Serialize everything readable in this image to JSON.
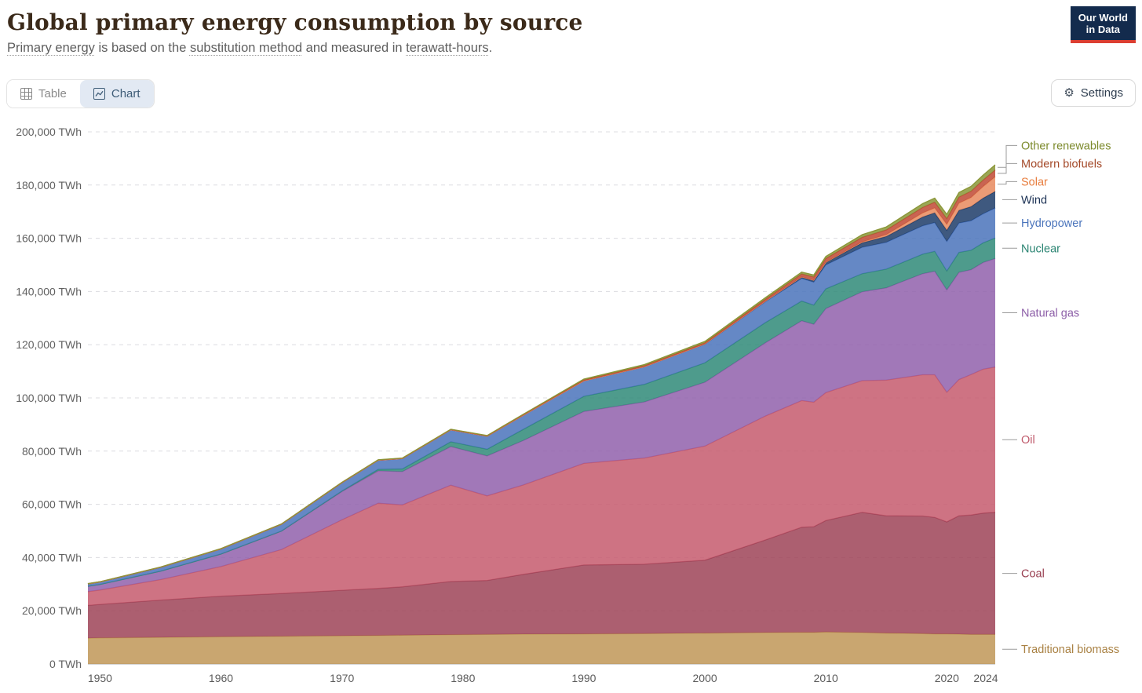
{
  "header": {
    "title": "Global primary energy consumption by source",
    "subtitle_parts": [
      {
        "text": "Primary energy",
        "underlined": true
      },
      {
        "text": " is based on the ",
        "underlined": false
      },
      {
        "text": "substitution method",
        "underlined": true
      },
      {
        "text": " and measured in ",
        "underlined": false
      },
      {
        "text": "terawatt-hours",
        "underlined": true
      },
      {
        "text": ".",
        "underlined": false
      }
    ],
    "logo": {
      "line1": "Our World",
      "line2": "in Data"
    }
  },
  "toolbar": {
    "table_tab": "Table",
    "chart_tab": "Chart",
    "active_tab": "Chart",
    "settings_label": "Settings"
  },
  "ui_colors": {
    "logo_bg": "#132b4d",
    "logo_red_bar": "#dc3e31",
    "active_tab_bg": "#e2e9f3",
    "active_tab_fg": "#3e5c77"
  },
  "chart_data": {
    "type": "area",
    "stacked": true,
    "title": "Global primary energy consumption by source",
    "unit": "TWh",
    "ylabel": "",
    "xlabel": "",
    "ylim": [
      0,
      200000
    ],
    "y_ticks": [
      0,
      20000,
      40000,
      60000,
      80000,
      100000,
      120000,
      140000,
      160000,
      180000,
      200000
    ],
    "x_ticks": [
      1950,
      1960,
      1970,
      1980,
      1990,
      2000,
      2010,
      2020,
      2024
    ],
    "grid": "dashed",
    "legend_position": "right",
    "series_order": "bottom-to-top",
    "x": [
      1949,
      1950,
      1955,
      1960,
      1965,
      1970,
      1973,
      1975,
      1979,
      1982,
      1985,
      1990,
      1995,
      2000,
      2005,
      2008,
      2009,
      2010,
      2013,
      2015,
      2018,
      2019,
      2020,
      2021,
      2022,
      2023,
      2024
    ],
    "series": [
      {
        "name": "Traditional biomass",
        "color": "#bf9657",
        "label_color": "#a98143",
        "values": [
          9700,
          9800,
          10000,
          10200,
          10400,
          10600,
          10700,
          10800,
          11000,
          11100,
          11200,
          11300,
          11400,
          11600,
          11800,
          11900,
          11900,
          12000,
          11800,
          11600,
          11400,
          11300,
          11300,
          11200,
          11100,
          11100,
          11100
        ]
      },
      {
        "name": "Coal",
        "color": "#9d4357",
        "label_color": "#983e50",
        "values": [
          12300,
          12600,
          14000,
          15300,
          16100,
          17100,
          17700,
          18200,
          20000,
          20300,
          22500,
          25900,
          26100,
          27400,
          34800,
          39500,
          39700,
          41900,
          45200,
          44100,
          44200,
          43800,
          42100,
          44500,
          44900,
          45600,
          45900
        ]
      },
      {
        "name": "Oil",
        "color": "#c65b6d",
        "label_color": "#c05b6c",
        "values": [
          5200,
          5400,
          7700,
          11100,
          16500,
          26500,
          32000,
          30800,
          36200,
          31800,
          33600,
          38200,
          39900,
          42900,
          46600,
          47600,
          46800,
          48100,
          49500,
          51000,
          53100,
          53600,
          48700,
          51200,
          52800,
          54100,
          54600
        ]
      },
      {
        "name": "Natural gas",
        "color": "#9160ab",
        "label_color": "#8d5fa8",
        "values": [
          2000,
          2100,
          3200,
          4700,
          6900,
          10600,
          12200,
          12500,
          14500,
          15000,
          16700,
          19500,
          21100,
          24000,
          27500,
          30000,
          29300,
          31600,
          33400,
          34700,
          38000,
          38900,
          38500,
          40300,
          39400,
          40100,
          40800
        ]
      },
      {
        "name": "Nuclear",
        "color": "#2f8a78",
        "label_color": "#2a8472",
        "values": [
          0,
          0,
          0,
          20,
          70,
          220,
          560,
          1000,
          1800,
          2500,
          4200,
          5700,
          6600,
          7300,
          7600,
          7400,
          7200,
          7400,
          6800,
          7000,
          7300,
          7500,
          7100,
          7500,
          7300,
          7400,
          7700
        ]
      },
      {
        "name": "Hydropower",
        "color": "#4a73bb",
        "label_color": "#4a74bb",
        "values": [
          870,
          900,
          1400,
          1900,
          2500,
          3100,
          3400,
          3900,
          4500,
          4900,
          5300,
          5800,
          6600,
          7000,
          7800,
          8500,
          8600,
          9000,
          9900,
          10100,
          10700,
          10800,
          11100,
          11000,
          11100,
          10900,
          11300
        ]
      },
      {
        "name": "Wind",
        "color": "#1d3c69",
        "label_color": "#1c3255",
        "values": [
          0,
          0,
          0,
          0,
          0,
          0,
          0,
          0,
          0,
          0,
          5,
          10,
          20,
          80,
          270,
          570,
          700,
          900,
          1700,
          2200,
          3300,
          3700,
          4200,
          4800,
          5300,
          5900,
          6200
        ]
      },
      {
        "name": "Solar",
        "color": "#e78a5e",
        "label_color": "#e87e3f",
        "values": [
          0,
          0,
          0,
          0,
          0,
          0,
          0,
          0,
          0,
          0,
          0,
          1,
          2,
          3,
          10,
          30,
          50,
          90,
          350,
          670,
          1500,
          1800,
          2200,
          2700,
          3400,
          4300,
          5500
        ]
      },
      {
        "name": "Modern biofuels",
        "color": "#bf4934",
        "label_color": "#a44a2a",
        "values": [
          100,
          100,
          105,
          110,
          115,
          120,
          122,
          125,
          128,
          140,
          200,
          330,
          390,
          450,
          700,
          1100,
          1200,
          1400,
          1700,
          1800,
          2100,
          2200,
          2200,
          2300,
          2400,
          2500,
          2600
        ]
      },
      {
        "name": "Other renewables",
        "color": "#8a9637",
        "label_color": "#7c8a2c",
        "values": [
          10,
          10,
          20,
          30,
          45,
          60,
          80,
          90,
          110,
          140,
          180,
          350,
          420,
          500,
          600,
          700,
          750,
          800,
          1000,
          1100,
          1400,
          1500,
          1600,
          1700,
          1800,
          1850,
          1900
        ]
      }
    ]
  }
}
